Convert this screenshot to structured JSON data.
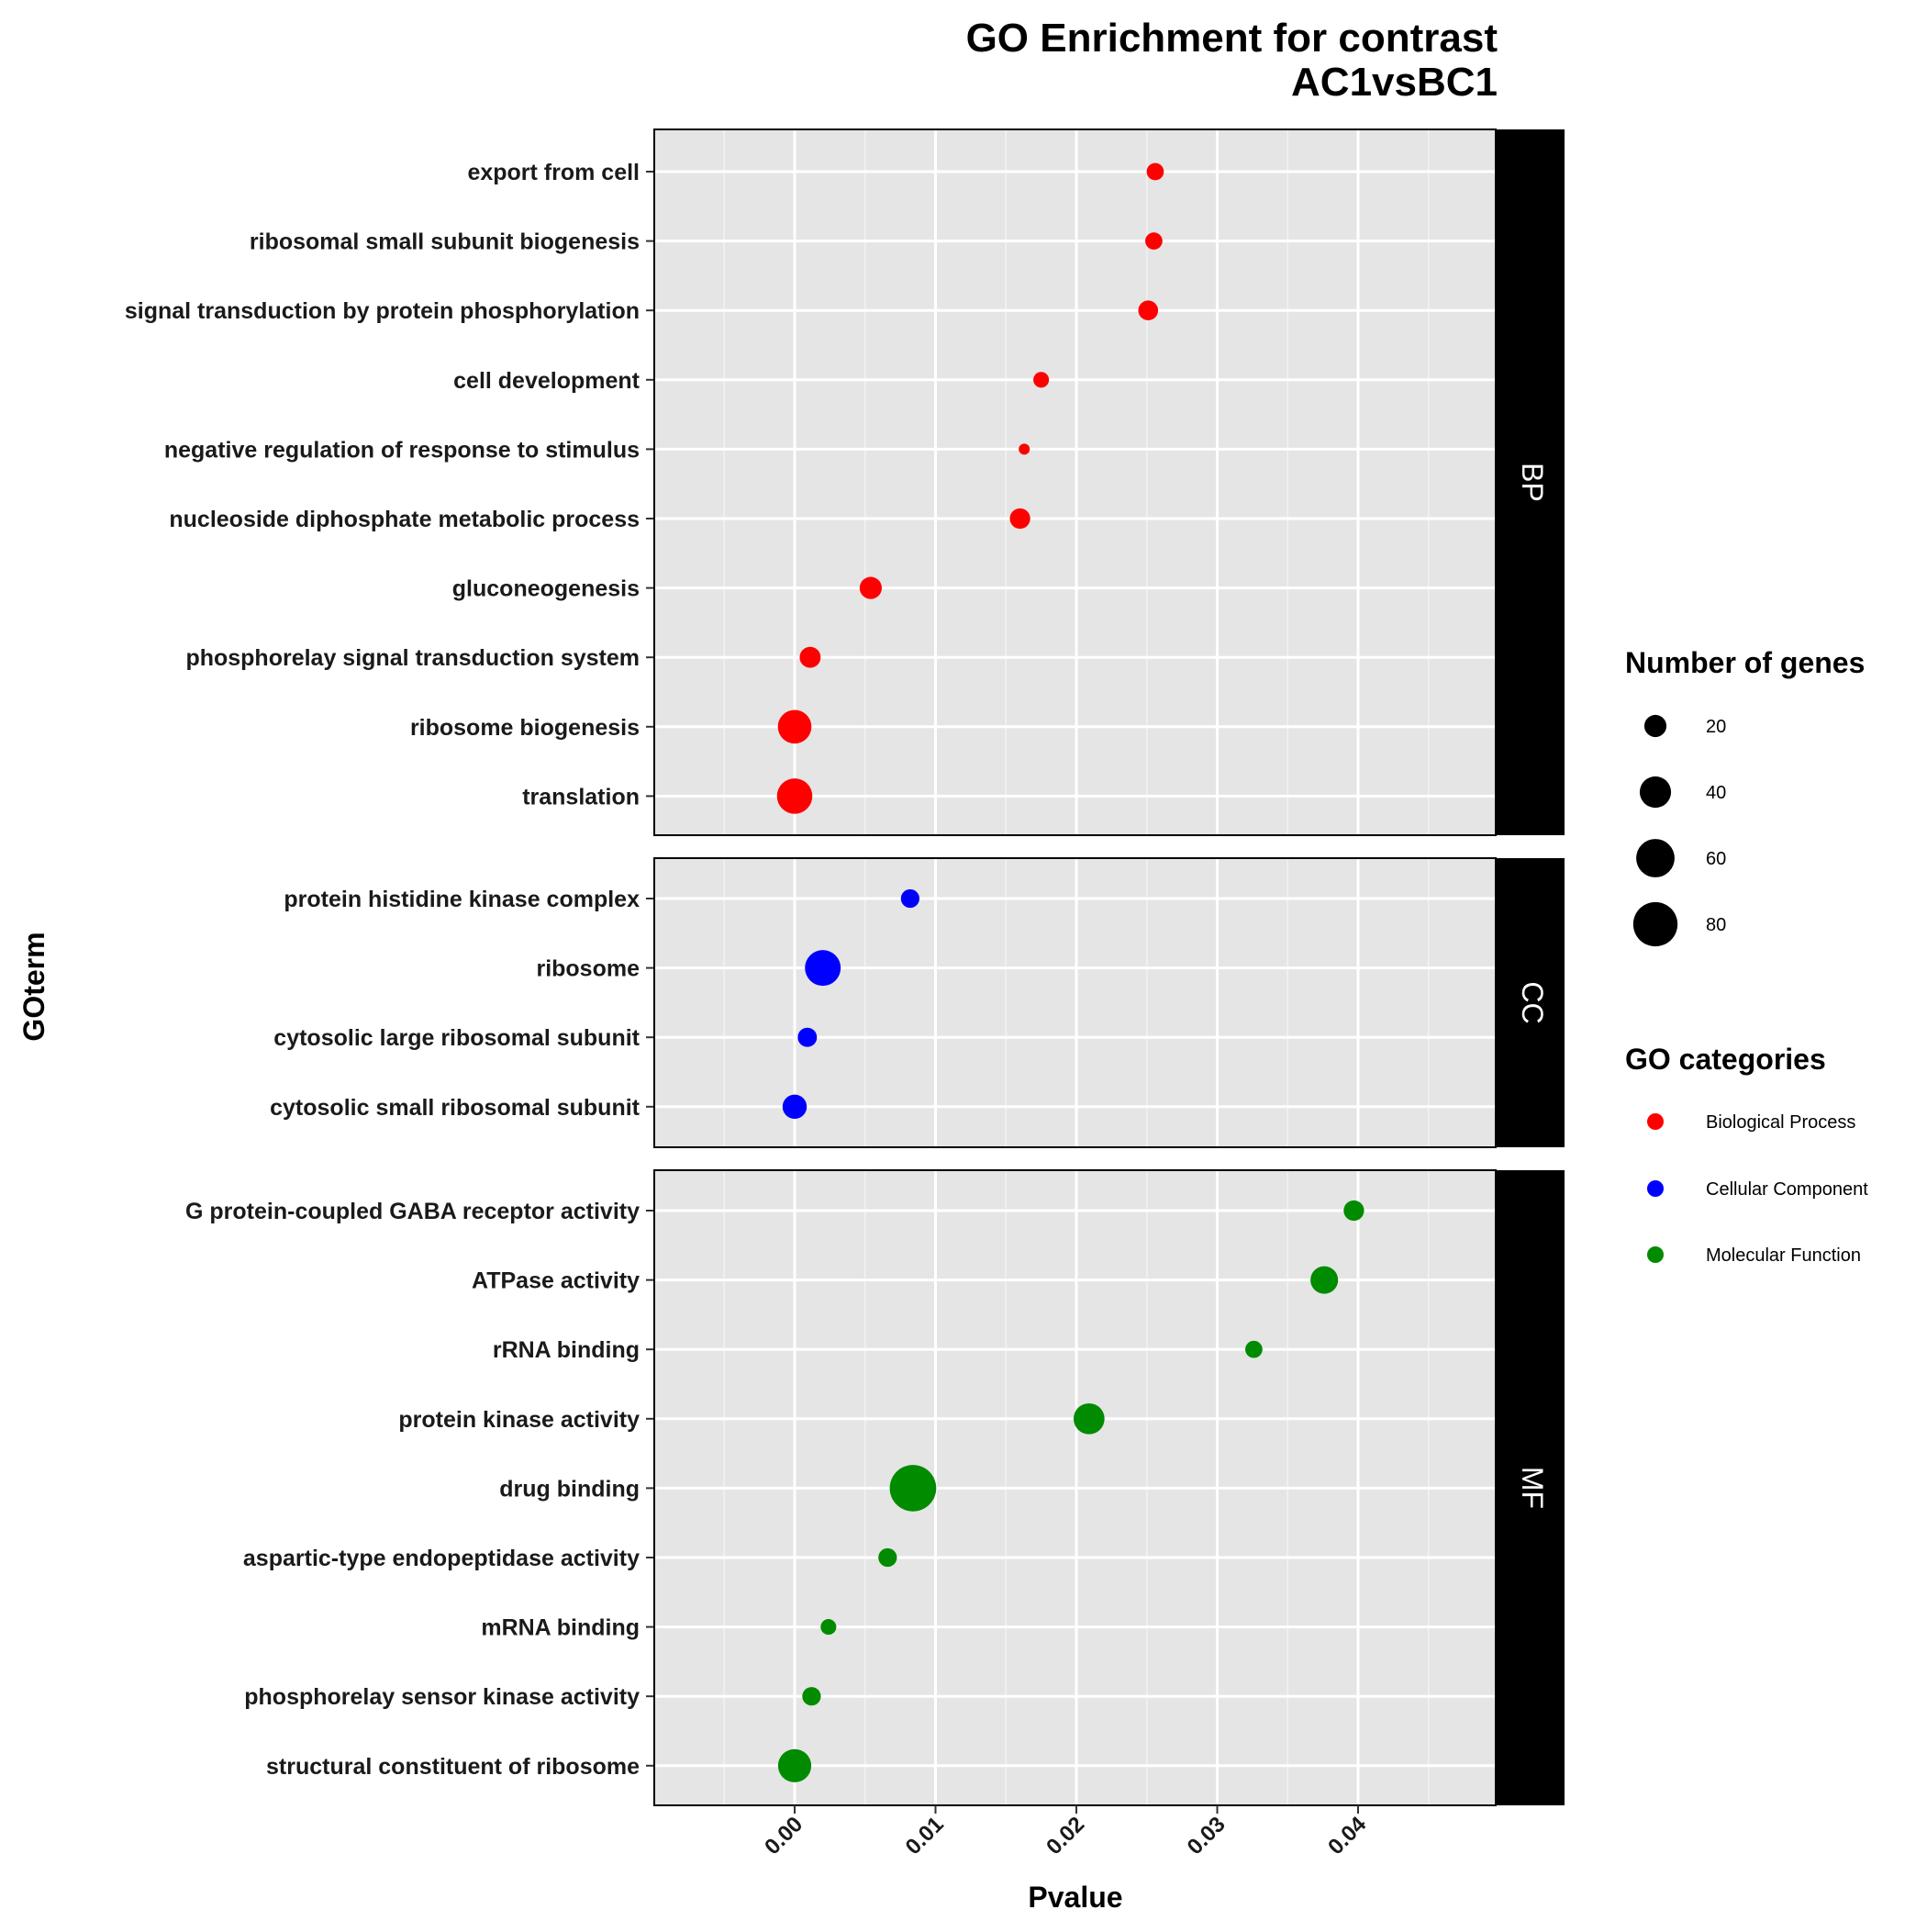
{
  "chart_data": {
    "type": "scatter",
    "title": "GO Enrichment for contrast",
    "subtitle": "AC1vsBC1",
    "xlabel": "Pvalue",
    "ylabel": "GOterm",
    "x_ticks": [
      "0.00",
      "0.01",
      "0.02",
      "0.03",
      "0.04"
    ],
    "xlim": [
      -0.0098,
      0.0497
    ],
    "grid": true,
    "legend_position": "right",
    "size_legend": {
      "title": "Number of genes",
      "entries": [
        {
          "label": "20",
          "value": 20
        },
        {
          "label": "40",
          "value": 40
        },
        {
          "label": "60",
          "value": 60
        },
        {
          "label": "80",
          "value": 80
        }
      ]
    },
    "color_legend": {
      "title": "GO categories",
      "entries": [
        {
          "label": "Biological Process",
          "color": "#ff0000"
        },
        {
          "label": "Cellular Component",
          "color": "#0000ff"
        },
        {
          "label": "Molecular Function",
          "color": "#008b00"
        }
      ]
    },
    "facets": [
      {
        "strip": "BP",
        "color": "#ff0000",
        "points": [
          {
            "term": "export from cell",
            "pvalue": 0.0256,
            "genes": 12
          },
          {
            "term": "ribosomal small subunit biogenesis",
            "pvalue": 0.0255,
            "genes": 12
          },
          {
            "term": "signal transduction by protein phosphorylation",
            "pvalue": 0.0251,
            "genes": 16
          },
          {
            "term": "cell development",
            "pvalue": 0.0175,
            "genes": 10
          },
          {
            "term": "negative regulation of response to stimulus",
            "pvalue": 0.0163,
            "genes": 5
          },
          {
            "term": "nucleoside diphosphate metabolic process",
            "pvalue": 0.016,
            "genes": 17
          },
          {
            "term": "gluconeogenesis",
            "pvalue": 0.0054,
            "genes": 20
          },
          {
            "term": "phosphorelay signal transduction system",
            "pvalue": 0.0011,
            "genes": 18
          },
          {
            "term": "ribosome biogenesis",
            "pvalue": 0.0,
            "genes": 46
          },
          {
            "term": "translation",
            "pvalue": 0.0,
            "genes": 51
          }
        ]
      },
      {
        "strip": "CC",
        "color": "#0000ff",
        "points": [
          {
            "term": "protein histidine kinase complex",
            "pvalue": 0.0082,
            "genes": 14
          },
          {
            "term": "ribosome",
            "pvalue": 0.002,
            "genes": 52
          },
          {
            "term": "cytosolic large ribosomal subunit",
            "pvalue": 0.0009,
            "genes": 15
          },
          {
            "term": "cytosolic small ribosomal subunit",
            "pvalue": 0.0,
            "genes": 24
          }
        ]
      },
      {
        "strip": "MF",
        "color": "#008b00",
        "points": [
          {
            "term": "G protein-coupled GABA receptor activity",
            "pvalue": 0.0397,
            "genes": 17
          },
          {
            "term": "ATPase activity",
            "pvalue": 0.0376,
            "genes": 31
          },
          {
            "term": "rRNA binding",
            "pvalue": 0.0326,
            "genes": 12
          },
          {
            "term": "protein kinase activity",
            "pvalue": 0.0209,
            "genes": 39
          },
          {
            "term": "drug binding",
            "pvalue": 0.0084,
            "genes": 88
          },
          {
            "term": "aspartic-type endopeptidase activity",
            "pvalue": 0.0066,
            "genes": 14
          },
          {
            "term": "mRNA binding",
            "pvalue": 0.0024,
            "genes": 10
          },
          {
            "term": "phosphorelay sensor kinase activity",
            "pvalue": 0.0012,
            "genes": 14
          },
          {
            "term": "structural constituent of ribosome",
            "pvalue": 0.0,
            "genes": 45
          }
        ]
      }
    ]
  }
}
